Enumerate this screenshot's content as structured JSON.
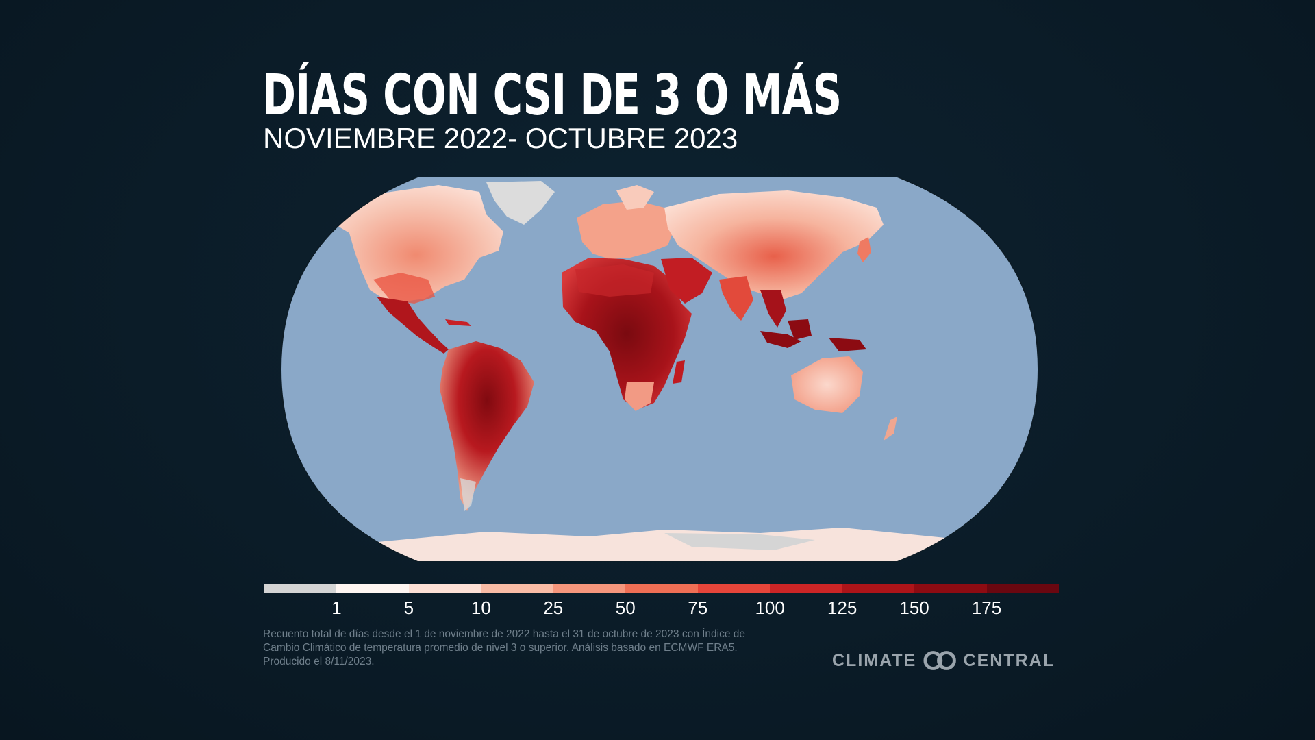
{
  "title": "DÍAS CON CSI DE 3 O MÁS",
  "subtitle": "NOVIEMBRE 2022- OCTUBRE 2023",
  "legend": {
    "ticks": [
      "1",
      "5",
      "10",
      "25",
      "50",
      "75",
      "100",
      "125",
      "150",
      "175"
    ],
    "colors": [
      "#d4d4d4",
      "#fff6f2",
      "#fde0d6",
      "#f9bca6",
      "#f5967c",
      "#ef6f55",
      "#e6453a",
      "#cc2526",
      "#ad1419",
      "#8d0b12",
      "#6a0710"
    ]
  },
  "map": {
    "ocean_color": "#8aa8c8"
  },
  "note": "Recuento total de días desde el 1 de noviembre de 2022 hasta el 31 de octubre de 2023 con Índice de Cambio Climático de temperatura promedio de nivel 3 o superior. Análisis basado en ECMWF ERA5. Producido el 8/11/2023.",
  "brand": {
    "left": "CLIMATE",
    "right": "CENTRAL",
    "logo_icon": "linked-rings-icon"
  }
}
